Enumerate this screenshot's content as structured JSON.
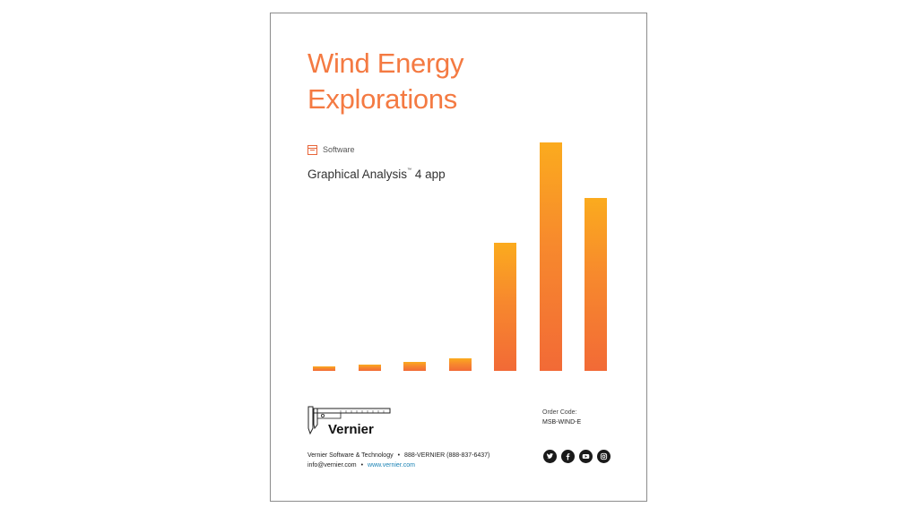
{
  "cover": {
    "title_line1": "Wind Energy",
    "title_line2": "Explorations",
    "category_label": "Software",
    "subtitle_main": "Graphical Analysis",
    "subtitle_tm": "™",
    "subtitle_rest": " 4 app"
  },
  "bar_graphic": {
    "relative_heights": [
      0.02,
      0.027,
      0.039,
      0.055,
      0.56,
      1.0,
      0.755
    ],
    "gradient_colors": [
      "#f26a36",
      "#f7892d",
      "#fbab1e"
    ]
  },
  "brand": {
    "logo_text": "Vernier",
    "company": "Vernier Software & Technology",
    "phone": "888-VERNIER (888-837-6437)",
    "email": "info@vernier.com",
    "website": "www.vernier.com",
    "bullet": "•"
  },
  "order": {
    "label": "Order Code:",
    "code": "MSB-WIND-E"
  },
  "social_icons": [
    "twitter-icon",
    "facebook-icon",
    "youtube-icon",
    "instagram-icon"
  ],
  "colors": {
    "accent": "#f47a42",
    "link": "#1b83b5",
    "border": "#8c8c8c"
  }
}
